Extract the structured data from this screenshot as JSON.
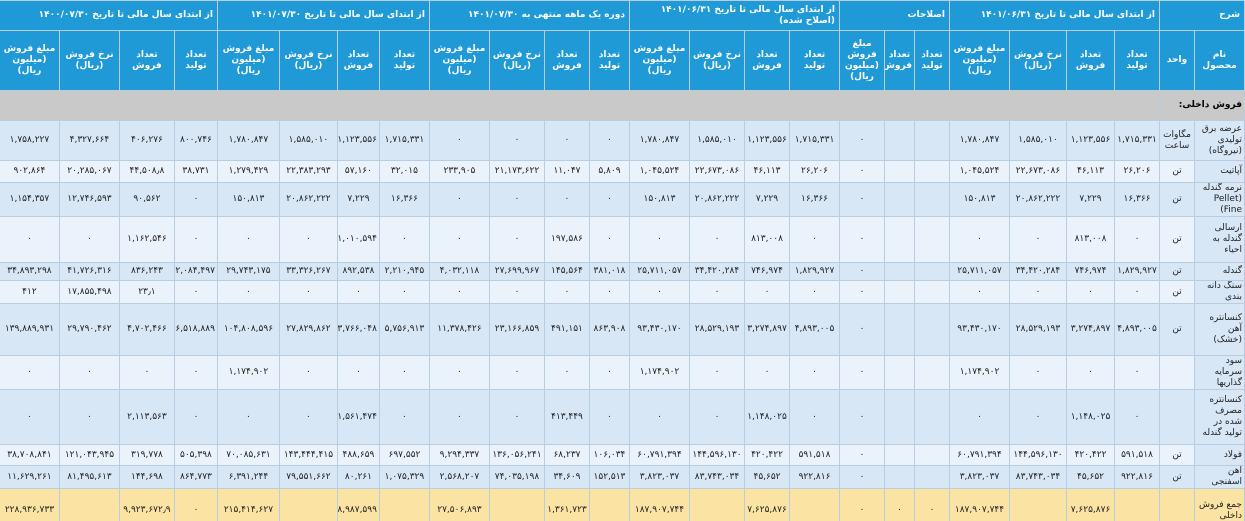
{
  "header": {
    "groups": [
      {
        "title": "شرح",
        "columns": [
          "نام محصول",
          "واحد"
        ]
      },
      {
        "title": "از ابتدای سال مالی تا تاریخ ۱۴۰۱/۰۶/۳۱",
        "columns": [
          "تعداد تولید",
          "تعداد فروش",
          "نرخ فروش (ریال)",
          "مبلغ فروش (میلیون ریال)"
        ]
      },
      {
        "title": "اصلاحات",
        "columns": [
          "تعداد تولید",
          "تعداد فروش",
          "مبلغ فروش (میلیون ریال)"
        ]
      },
      {
        "title": "از ابتدای سال مالی تا تاریخ ۱۴۰۱/۰۶/۳۱ (اصلاح شده)",
        "columns": [
          "تعداد تولید",
          "تعداد فروش",
          "نرخ فروش (ریال)",
          "مبلغ فروش (میلیون ریال)"
        ]
      },
      {
        "title": "دوره یک ماهه منتهی به ۱۴۰۱/۰۷/۳۰",
        "columns": [
          "تعداد تولید",
          "تعداد فروش",
          "نرخ فروش (ریال)",
          "مبلغ فروش (میلیون ریال)"
        ]
      },
      {
        "title": "از ابتدای سال مالی تا تاریخ ۱۴۰۱/۰۷/۳۰",
        "columns": [
          "تعداد تولید",
          "تعداد فروش",
          "نرخ فروش (ریال)",
          "مبلغ فروش (میلیون ریال)"
        ]
      },
      {
        "title": "از ابتدای سال مالی تا تاریخ ۱۴۰۰/۰۷/۳۰",
        "columns": [
          "تعداد تولید",
          "تعداد فروش",
          "نرخ فروش (ریال)",
          "مبلغ فروش (میلیون ریال)"
        ]
      }
    ]
  },
  "section": "فروش داخلی:",
  "rows": [
    {
      "name": "عرضه برق تولیدی (نیروگاه)",
      "unit": "مگاوات ساعت",
      "values": [
        "۱,۷۱۵,۳۳۱",
        "۱,۱۲۳,۵۵۶",
        "۱,۵۸۵,۰۱۰",
        "۱,۷۸۰,۸۴۷",
        null,
        null,
        "۰",
        "۱,۷۱۵,۳۳۱",
        "۱,۱۲۳,۵۵۶",
        "۱,۵۸۵,۰۱۰",
        "۱,۷۸۰,۸۴۷",
        "۰",
        "۰",
        "۰",
        "۰",
        "۱,۷۱۵,۳۳۱",
        "۱,۱۲۳,۵۵۶",
        "۱,۵۸۵,۰۱۰",
        "۱,۷۸۰,۸۴۷",
        "۸۰۰,۷۴۶",
        "۴۰۶,۲۷۶",
        "۴,۳۲۷,۶۶۴",
        "۱,۷۵۸,۲۲۷"
      ]
    },
    {
      "name": "آپاتیت",
      "unit": "تن",
      "values": [
        "۲۶,۲۰۶",
        "۴۶,۱۱۳",
        "۲۲,۶۷۳,۰۸۶",
        "۱,۰۴۵,۵۲۴",
        null,
        null,
        "۰",
        "۲۶,۲۰۶",
        "۴۶,۱۱۳",
        "۲۲,۶۷۳,۰۸۶",
        "۱,۰۴۵,۵۲۴",
        "۵,۸۰۹",
        "۱۱,۰۴۷",
        "۲۱,۱۷۳,۶۲۲",
        "۲۳۳,۹۰۵",
        "۳۲,۰۱۵",
        "۵۷,۱۶۰",
        "۲۲,۳۸۳,۲۹۳",
        "۱,۲۷۹,۴۲۹",
        "۳۸,۷۳۱",
        "۴۴,۵۰۸٫۸",
        "۲۰,۲۸۵,۰۶۷",
        "۹۰۲,۸۶۴"
      ]
    },
    {
      "name": "نرمه گندله (Pellet Fine)",
      "unit": "تن",
      "values": [
        "۱۶,۳۶۶",
        "۷,۲۲۹",
        "۲۰,۸۶۲,۲۲۲",
        "۱۵۰,۸۱۳",
        null,
        null,
        "۰",
        "۱۶,۳۶۶",
        "۷,۲۲۹",
        "۲۰,۸۶۲,۲۲۲",
        "۱۵۰,۸۱۳",
        "۰",
        "۰",
        "۰",
        "۰",
        "۱۶,۳۶۶",
        "۷,۲۲۹",
        "۲۰,۸۶۲,۲۲۲",
        "۱۵۰,۸۱۳",
        "۰",
        "۹۰,۵۶۲",
        "۱۲,۷۴۶,۵۹۳",
        "۱,۱۵۴,۳۵۷"
      ]
    },
    {
      "name": "ارسالی گندله به احیاء",
      "unit": "تن",
      "values": [
        "۰",
        "۸۱۳,۰۰۸",
        "۰",
        "۰",
        null,
        null,
        "۰",
        "۰",
        "۸۱۳,۰۰۸",
        "۰",
        "۰",
        "۰",
        "۱۹۷,۵۸۶",
        "۰",
        "۰",
        "۰",
        "۱,۰۱۰,۵۹۴",
        "۰",
        "۰",
        "۰",
        "۱,۱۶۲,۵۴۶",
        "۰",
        "۰"
      ]
    },
    {
      "name": "گندله",
      "unit": "تن",
      "values": [
        "۱,۸۲۹,۹۲۷",
        "۷۴۶,۹۷۴",
        "۳۴,۴۲۰,۲۸۴",
        "۲۵,۷۱۱,۰۵۷",
        null,
        null,
        "۰",
        "۱,۸۲۹,۹۲۷",
        "۷۴۶,۹۷۴",
        "۳۴,۴۲۰,۲۸۴",
        "۲۵,۷۱۱,۰۵۷",
        "۳۸۱,۰۱۸",
        "۱۴۵,۵۶۴",
        "۲۷,۶۹۹,۹۶۷",
        "۴,۰۳۲,۱۱۸",
        "۲,۲۱۰,۹۴۵",
        "۸۹۲,۵۳۸",
        "۳۳,۳۲۶,۲۶۷",
        "۲۹,۷۴۳,۱۷۵",
        "۲,۰۸۴,۴۹۷",
        "۸۳۶,۲۴۳",
        "۴۱,۷۲۶,۳۱۶",
        "۳۴,۸۹۳,۲۹۸"
      ]
    },
    {
      "name": "سنگ دانه بندی",
      "unit": "تن",
      "values": [
        "۰",
        "۰",
        "۰",
        "۰",
        null,
        null,
        "۰",
        "۰",
        "۰",
        "۰",
        "۰",
        "۰",
        "۰",
        "۰",
        "۰",
        "۰",
        "۰",
        "۰",
        "۰",
        "۰",
        "۲۳٫۱",
        "۱۷,۸۵۵,۴۹۸",
        "۴۱۲"
      ]
    },
    {
      "name": "کنسانتره آهن (خشک)",
      "unit": "تن",
      "values": [
        "۴,۸۹۳,۰۰۵",
        "۳,۲۷۴,۸۹۷",
        "۲۸,۵۲۹,۱۹۳",
        "۹۳,۴۳۰,۱۷۰",
        null,
        null,
        "۰",
        "۴,۸۹۳,۰۰۵",
        "۳,۲۷۴,۸۹۷",
        "۲۸,۵۲۹,۱۹۳",
        "۹۳,۴۳۰,۱۷۰",
        "۸۶۳,۹۰۸",
        "۴۹۱,۱۵۱",
        "۲۳,۱۶۶,۸۵۹",
        "۱۱,۳۷۸,۴۲۶",
        "۵,۷۵۶,۹۱۳",
        "۳,۷۶۶,۰۴۸",
        "۲۷,۸۲۹,۸۶۲",
        "۱۰۴,۸۰۸,۵۹۶",
        "۶,۵۱۸,۸۸۹",
        "۴,۷۰۲,۴۶۶",
        "۲۹,۷۹۰,۴۶۲",
        "۱۳۹,۸۸۹,۹۳۱"
      ]
    },
    {
      "name": "سود سرمایه گذاریها",
      "unit": null,
      "values": [
        "۰",
        "۰",
        "۰",
        "۱,۱۷۴,۹۰۲",
        null,
        null,
        "۰",
        "۰",
        "۰",
        "۰",
        "۱,۱۷۴,۹۰۲",
        "۰",
        "۰",
        "۰",
        "۰",
        "۰",
        "۰",
        "۰",
        "۱,۱۷۴,۹۰۲",
        "۰",
        "۰",
        "۰",
        "۰"
      ]
    },
    {
      "name": "کنسانتره مصرف شده در تولید گندله",
      "unit": null,
      "values": [
        "۰",
        "۱,۱۴۸,۰۲۵",
        "۰",
        "۰",
        null,
        null,
        "۰",
        "۰",
        "۱,۱۴۸,۰۲۵",
        "۰",
        "۰",
        "۰",
        "۴۱۳,۴۴۹",
        "۰",
        "۰",
        "۰",
        "۱,۵۶۱,۴۷۴",
        "۰",
        "۰",
        "۰",
        "۲,۱۱۳,۵۶۳",
        "۰",
        "۰"
      ]
    },
    {
      "name": "فولاد",
      "unit": "تن",
      "values": [
        "۵۹۱,۵۱۸",
        "۴۲۰,۴۲۲",
        "۱۴۴,۵۹۶,۱۳۰",
        "۶۰,۷۹۱,۳۹۴",
        null,
        null,
        "۰",
        "۵۹۱,۵۱۸",
        "۴۲۰,۴۲۲",
        "۱۴۴,۵۹۶,۱۳۰",
        "۶۰,۷۹۱,۳۹۴",
        "۱۰۶,۰۳۴",
        "۶۸,۲۳۷",
        "۱۳۶,۰۵۶,۲۴۱",
        "۹,۲۹۴,۳۳۷",
        "۶۹۷,۵۵۲",
        "۴۸۸,۶۵۹",
        "۱۴۳,۴۴۴,۴۱۵",
        "۷۰,۰۸۵,۶۳۱",
        "۵۰۵,۳۹۸",
        "۳۱۹,۷۷۸",
        "۱۲۱,۰۴۳,۹۴۵",
        "۳۸,۷۰۸,۸۴۱"
      ]
    },
    {
      "name": "آهن اسفنجی",
      "unit": "تن",
      "values": [
        "۹۲۲,۸۱۶",
        "۴۵,۶۵۲",
        "۸۳,۷۴۳,۰۳۴",
        "۳,۸۲۳,۰۳۷",
        null,
        null,
        "۰",
        "۹۲۲,۸۱۶",
        "۴۵,۶۵۲",
        "۸۳,۷۴۳,۰۳۴",
        "۳,۸۲۳,۰۳۷",
        "۱۵۲,۵۱۳",
        "۳۴,۶۰۹",
        "۷۴,۰۳۵,۱۹۸",
        "۲,۵۶۸,۲۰۷",
        "۱,۰۷۵,۳۲۹",
        "۸۰,۲۶۱",
        "۷۹,۵۵۱,۶۶۲",
        "۶,۳۹۱,۲۴۴",
        "۸۶۴,۷۷۳",
        "۱۴۴,۶۹۸",
        "۸۱,۴۹۵,۶۱۳",
        "۱۱,۶۲۹,۲۶۱"
      ]
    }
  ],
  "total": {
    "name": "جمع فروش داخلی",
    "values": [
      null,
      "۷,۶۲۵,۸۷۶",
      null,
      "۱۸۷,۹۰۷,۷۴۴",
      "۰",
      "۰",
      "۰",
      null,
      "۷,۶۲۵,۸۷۶",
      null,
      "۱۸۷,۹۰۷,۷۴۴",
      null,
      "۱,۳۶۱,۷۲۳",
      null,
      "۲۷,۵۰۶,۸۹۳",
      null,
      "۸,۹۸۷,۵۹۹",
      null,
      "۲۱۵,۴۱۴,۶۲۷",
      "۰",
      "۹,۹۲۳,۶۷۲٫۹",
      null,
      "۲۲۸,۹۳۶,۷۳۳"
    ]
  }
}
